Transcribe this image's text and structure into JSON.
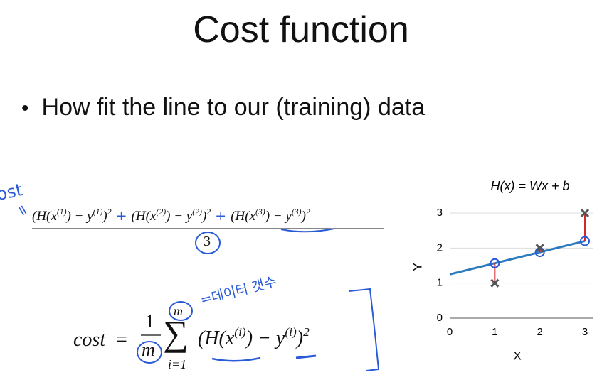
{
  "title": "Cost function",
  "bullet": "How fit the line to our (training) data",
  "formula_average": {
    "numerator": [
      {
        "t": "(H(x"
      },
      {
        "sup": "(1)"
      },
      {
        "t": ") − y"
      },
      {
        "sup": "(1)"
      },
      {
        "t": ")"
      },
      {
        "sup": "2"
      },
      {
        "pen": " + "
      },
      {
        "t": "(H(x"
      },
      {
        "sup": "(2)"
      },
      {
        "t": ") − y"
      },
      {
        "sup": "(2)"
      },
      {
        "t": ")"
      },
      {
        "sup": "2"
      },
      {
        "pen": " + "
      },
      {
        "t": "(H(x"
      },
      {
        "sup": "(3)"
      },
      {
        "t": ") − y"
      },
      {
        "sup": "(3)"
      },
      {
        "t": ")"
      },
      {
        "sup": "2"
      }
    ],
    "denominator": "3"
  },
  "formula_cost": {
    "lhs": "cost",
    "equals": "=",
    "numerator": "1",
    "denominator": "m",
    "sum_symbol": "∑",
    "sum_upper": "m",
    "sum_lower": "i=1",
    "summand": [
      {
        "t": "(H(x"
      },
      {
        "sup": "(i)"
      },
      {
        "t": ") − y"
      },
      {
        "sup": "(i)"
      },
      {
        "t": ")"
      },
      {
        "sup": "2"
      }
    ]
  },
  "handwriting": {
    "cost_label": "cost",
    "equals": "=",
    "data_count": "=데이터 갯수"
  },
  "chart_data": {
    "type": "scatter",
    "title": "H(x) = Wx + b",
    "x_label": "X",
    "y_label": "Y",
    "xlim": [
      0,
      3
    ],
    "ylim": [
      0,
      3
    ],
    "xticks": [
      0,
      1,
      2,
      3
    ],
    "yticks": [
      0,
      1,
      2,
      3
    ],
    "grid": true,
    "series": [
      {
        "type": "scatter",
        "x": [
          1,
          2,
          3
        ],
        "values": [
          1,
          2,
          3
        ],
        "color": "#555555"
      },
      {
        "type": "line",
        "x": [
          0,
          3
        ],
        "values": [
          1.25,
          2.2
        ],
        "color": "#2b7bbd"
      }
    ],
    "residual_color": "#d62728"
  }
}
